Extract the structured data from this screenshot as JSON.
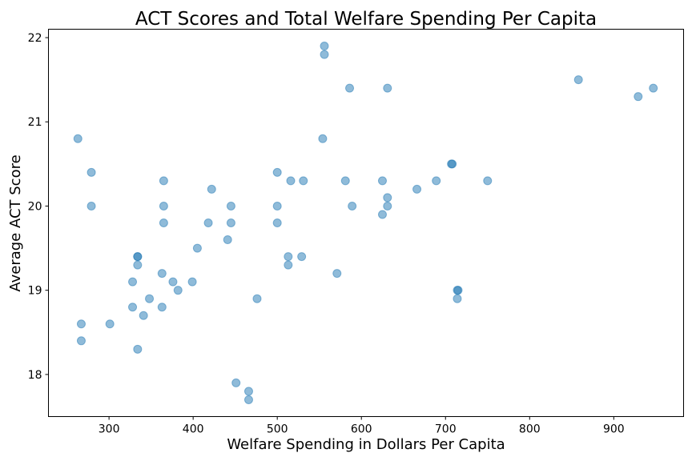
{
  "chart_data": {
    "type": "scatter",
    "title": "ACT Scores and Total Welfare Spending Per Capita",
    "xlabel": "Welfare Spending in Dollars Per Capita",
    "ylabel": "Average ACT Score",
    "xlim": [
      228,
      983
    ],
    "ylim": [
      17.5,
      22.1
    ],
    "xticks": [
      300,
      400,
      500,
      600,
      700,
      800,
      900
    ],
    "yticks": [
      18,
      19,
      20,
      21,
      22
    ],
    "grid": false,
    "color": "#1f77b4",
    "points": [
      [
        263,
        20.8
      ],
      [
        279,
        20.4
      ],
      [
        279,
        20.0
      ],
      [
        267,
        18.6
      ],
      [
        267,
        18.4
      ],
      [
        301,
        18.6
      ],
      [
        328,
        19.1
      ],
      [
        328,
        18.8
      ],
      [
        334,
        19.4
      ],
      [
        334,
        19.4
      ],
      [
        334,
        19.3
      ],
      [
        334,
        18.3
      ],
      [
        341,
        18.7
      ],
      [
        348,
        18.9
      ],
      [
        363,
        19.2
      ],
      [
        363,
        18.8
      ],
      [
        365,
        20.3
      ],
      [
        365,
        20.0
      ],
      [
        365,
        19.8
      ],
      [
        376,
        19.1
      ],
      [
        382,
        19.0
      ],
      [
        399,
        19.1
      ],
      [
        405,
        19.5
      ],
      [
        418,
        19.8
      ],
      [
        422,
        20.2
      ],
      [
        441,
        19.6
      ],
      [
        445,
        20.0
      ],
      [
        445,
        19.8
      ],
      [
        451,
        17.9
      ],
      [
        466,
        17.8
      ],
      [
        466,
        17.7
      ],
      [
        476,
        18.9
      ],
      [
        500,
        20.4
      ],
      [
        500,
        20.0
      ],
      [
        500,
        19.8
      ],
      [
        513,
        19.4
      ],
      [
        513,
        19.3
      ],
      [
        516,
        20.3
      ],
      [
        529,
        19.4
      ],
      [
        531,
        20.3
      ],
      [
        554,
        20.8
      ],
      [
        556,
        21.9
      ],
      [
        556,
        21.8
      ],
      [
        571,
        19.2
      ],
      [
        581,
        20.3
      ],
      [
        586,
        21.4
      ],
      [
        589,
        20.0
      ],
      [
        625,
        20.3
      ],
      [
        625,
        19.9
      ],
      [
        631,
        21.4
      ],
      [
        631,
        20.1
      ],
      [
        631,
        20.0
      ],
      [
        666,
        20.2
      ],
      [
        689,
        20.3
      ],
      [
        707,
        20.5
      ],
      [
        708,
        20.5
      ],
      [
        714,
        19.0
      ],
      [
        715,
        19.0
      ],
      [
        714,
        18.9
      ],
      [
        750,
        20.3
      ],
      [
        858,
        21.5
      ],
      [
        929,
        21.3
      ],
      [
        947,
        21.4
      ]
    ]
  }
}
